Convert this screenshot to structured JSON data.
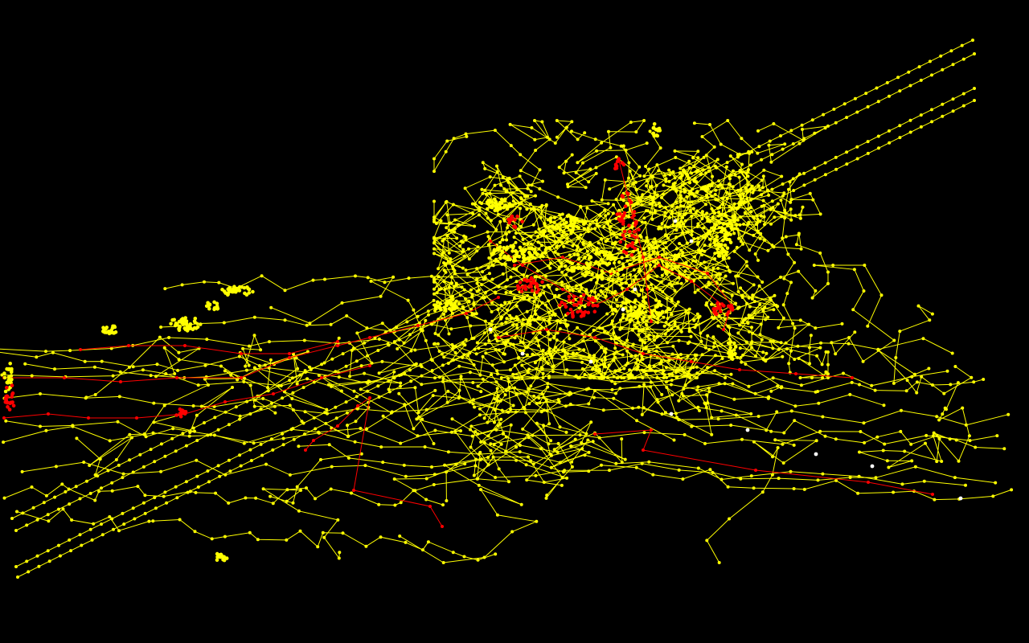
{
  "scene": {
    "background_color": "#000000",
    "colors": {
      "primary_tracks": "#ffff00",
      "highlighted_tracks": "#ff0000",
      "sparse_points": "#ffffff"
    },
    "visible_text": []
  }
}
